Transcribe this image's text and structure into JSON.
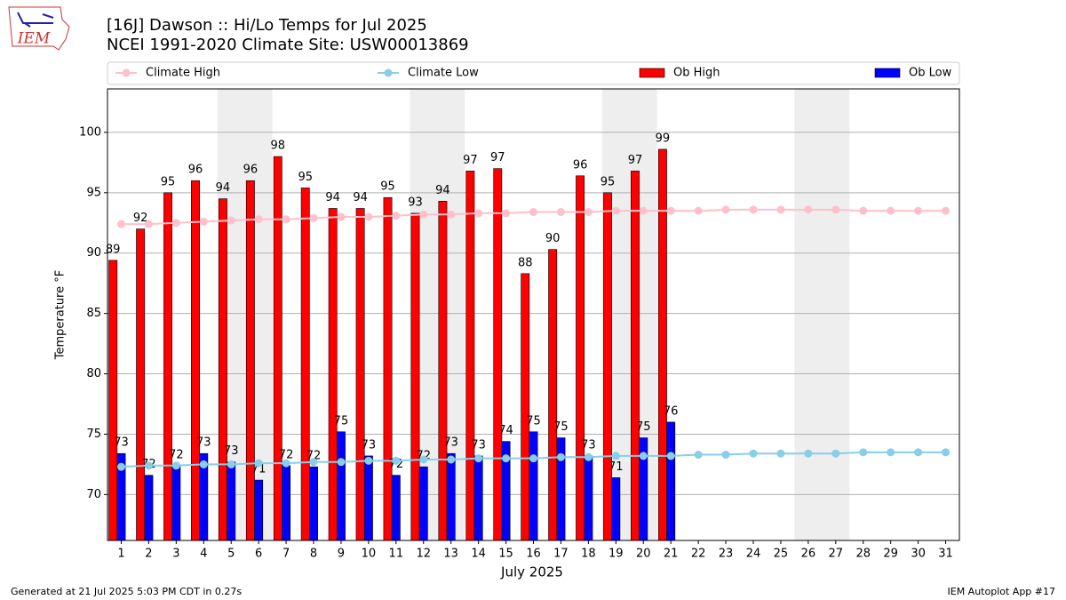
{
  "chart_data": {
    "type": "bar",
    "logo": "IEM",
    "title": "[16J] Dawson :: Hi/Lo Temps for Jul 2025",
    "subtitle": "NCEI 1991-2020 Climate Site: USW00013869",
    "x_label": "July 2025",
    "y_label": "Temperature °F",
    "footer_left": "Generated at 21 Jul 2025 5:03 PM CDT in 0.27s",
    "footer_right": "IEM Autoplot App #17",
    "x": [
      1,
      2,
      3,
      4,
      5,
      6,
      7,
      8,
      9,
      10,
      11,
      12,
      13,
      14,
      15,
      16,
      17,
      18,
      19,
      20,
      21,
      22,
      23,
      24,
      25,
      26,
      27,
      28,
      29,
      30,
      31
    ],
    "xlim": [
      0.5,
      31.5
    ],
    "xticks": [
      1,
      2,
      3,
      4,
      5,
      6,
      7,
      8,
      9,
      10,
      11,
      12,
      13,
      14,
      15,
      16,
      17,
      18,
      19,
      20,
      21,
      22,
      23,
      24,
      25,
      26,
      27,
      28,
      29,
      30,
      31
    ],
    "ylim": [
      66.2,
      103.6
    ],
    "yticks": [
      70,
      75,
      80,
      85,
      90,
      95,
      100
    ],
    "grid": true,
    "shaded": [
      [
        4.5,
        6.5
      ],
      [
        11.5,
        13.5
      ],
      [
        18.5,
        20.5
      ],
      [
        25.5,
        27.5
      ]
    ],
    "shade_color": "#eeeeee",
    "series": [
      {
        "name": "Climate High",
        "kind": "line",
        "color": "#ffc0cb",
        "values": [
          92.4,
          92.4,
          92.5,
          92.6,
          92.7,
          92.8,
          92.8,
          92.9,
          93.0,
          93.0,
          93.1,
          93.2,
          93.2,
          93.3,
          93.3,
          93.4,
          93.4,
          93.4,
          93.5,
          93.5,
          93.5,
          93.5,
          93.6,
          93.6,
          93.6,
          93.6,
          93.6,
          93.5,
          93.5,
          93.5,
          93.5
        ]
      },
      {
        "name": "Climate Low",
        "kind": "line",
        "color": "#87ceeb",
        "values": [
          72.3,
          72.4,
          72.4,
          72.5,
          72.5,
          72.6,
          72.6,
          72.7,
          72.7,
          72.8,
          72.8,
          72.9,
          72.9,
          73.0,
          73.0,
          73.0,
          73.1,
          73.1,
          73.2,
          73.2,
          73.2,
          73.3,
          73.3,
          73.4,
          73.4,
          73.4,
          73.4,
          73.5,
          73.5,
          73.5,
          73.5
        ]
      },
      {
        "name": "Ob High",
        "kind": "bar",
        "color": "#ff0000",
        "values": [
          89.4,
          92.0,
          95.0,
          96.0,
          94.5,
          96.0,
          98.0,
          95.4,
          93.7,
          93.7,
          94.6,
          93.3,
          94.3,
          96.8,
          97.0,
          88.3,
          90.3,
          96.4,
          95.0,
          96.8,
          98.6,
          null,
          null,
          null,
          null,
          null,
          null,
          null,
          null,
          null,
          null
        ],
        "value_labels": [
          "89",
          "92",
          "95",
          "96",
          "94",
          "96",
          "98",
          "95",
          "94",
          "94",
          "95",
          "93",
          "94",
          "97",
          "97",
          "88",
          "90",
          "96",
          "95",
          "97",
          "99",
          null,
          null,
          null,
          null,
          null,
          null,
          null,
          null,
          null,
          null
        ]
      },
      {
        "name": "Ob Low",
        "kind": "bar",
        "color": "#0000ff",
        "values": [
          73.4,
          71.6,
          72.4,
          73.4,
          72.7,
          71.2,
          72.4,
          72.3,
          75.2,
          73.2,
          71.6,
          72.3,
          73.4,
          73.2,
          74.4,
          75.2,
          74.7,
          73.2,
          71.4,
          74.7,
          76.0,
          null,
          null,
          null,
          null,
          null,
          null,
          null,
          null,
          null,
          null
        ],
        "value_labels": [
          "73",
          "72",
          "72",
          "73",
          "73",
          "71",
          "72",
          "72",
          "75",
          "73",
          "72",
          "72",
          "73",
          "73",
          "74",
          "75",
          "75",
          "73",
          "71",
          "75",
          "76",
          null,
          null,
          null,
          null,
          null,
          null,
          null,
          null,
          null,
          null
        ]
      }
    ]
  }
}
